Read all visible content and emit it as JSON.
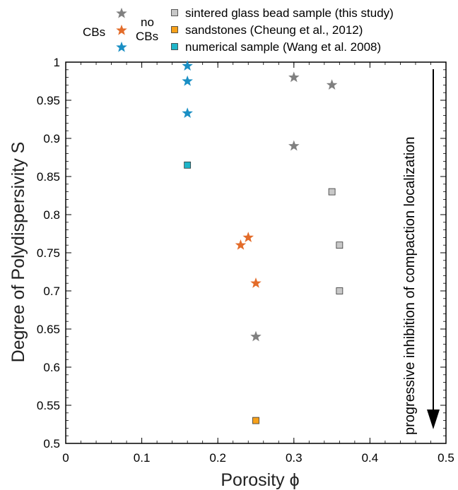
{
  "chart_data": {
    "type": "scatter",
    "xlabel": "Porosity ϕ",
    "ylabel": "Degree of Polydispersivity S",
    "xlim": [
      0,
      0.5
    ],
    "ylim": [
      0.5,
      1
    ],
    "x_ticks": [
      "0",
      "0.1",
      "0.2",
      "0.3",
      "0.4",
      "0.5"
    ],
    "y_ticks": [
      "0.5",
      "0.55",
      "0.6",
      "0.65",
      "0.7",
      "0.75",
      "0.8",
      "0.85",
      "0.9",
      "0.95",
      "1"
    ],
    "grid": false,
    "legend": {
      "position": "top",
      "cbs_label": "CBs",
      "no_cbs_label_1": "no",
      "no_cbs_label_2": "CBs",
      "entries": [
        {
          "name": "sintered glass bead sample (this study)",
          "color": "#808080",
          "square_fill": "#c8c8c8"
        },
        {
          "name": "sandstones (Cheung et al., 2012)",
          "color": "#e36c2a",
          "square_fill": "#f7a11a"
        },
        {
          "name": "numerical sample (Wang et al. 2008)",
          "color": "#1a8fc4",
          "square_fill": "#1fb5c9"
        }
      ]
    },
    "annotation": "progressive inhibition of compaction localization",
    "series": [
      {
        "name": "sintered glass bead sample (this study)",
        "marker": "star",
        "color": "#808080",
        "points": [
          [
            0.3,
            0.98
          ],
          [
            0.35,
            0.97
          ],
          [
            0.3,
            0.89
          ],
          [
            0.25,
            0.64
          ]
        ]
      },
      {
        "name": "sintered glass bead sample (this study)",
        "marker": "square",
        "color": "#c8c8c8",
        "points": [
          [
            0.35,
            0.83
          ],
          [
            0.36,
            0.76
          ],
          [
            0.36,
            0.7
          ]
        ]
      },
      {
        "name": "sandstones (Cheung et al., 2012)",
        "marker": "star",
        "color": "#e36c2a",
        "points": [
          [
            0.24,
            0.77
          ],
          [
            0.23,
            0.76
          ],
          [
            0.25,
            0.71
          ]
        ]
      },
      {
        "name": "sandstones (Cheung et al., 2012)",
        "marker": "square",
        "color": "#f7a11a",
        "points": [
          [
            0.25,
            0.53
          ]
        ]
      },
      {
        "name": "numerical sample (Wang et al. 2008)",
        "marker": "star",
        "color": "#1a8fc4",
        "points": [
          [
            0.16,
            0.995
          ],
          [
            0.16,
            0.975
          ],
          [
            0.16,
            0.933
          ]
        ]
      },
      {
        "name": "numerical sample (Wang et al. 2008)",
        "marker": "square",
        "color": "#1fb5c9",
        "points": [
          [
            0.16,
            0.865
          ]
        ]
      }
    ]
  }
}
